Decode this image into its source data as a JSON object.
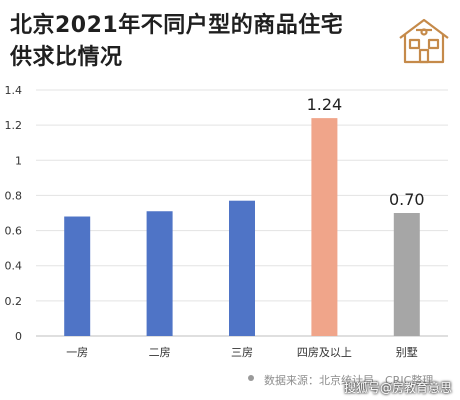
{
  "header": {
    "title_line1": "北京2021年不同户型的商品住宅",
    "title_line2": "供求比情况"
  },
  "logo": {
    "icon": "house-icon",
    "color": "#c58a4a"
  },
  "footer": {
    "source": "数据来源：北京统计局，CRIC整理",
    "watermark": "搜狐号@房教育意思"
  },
  "chart_data": {
    "type": "bar",
    "categories": [
      "一房",
      "二房",
      "三房",
      "四房及以上",
      "别墅"
    ],
    "values": [
      0.68,
      0.71,
      0.77,
      1.24,
      0.7
    ],
    "data_labels": [
      {
        "category": "四房及以上",
        "text": "1.24"
      },
      {
        "category": "别墅",
        "text": "0.70"
      }
    ],
    "bar_colors": [
      "#4f74c6",
      "#4f74c6",
      "#4f74c6",
      "#f0a58a",
      "#a6a6a6"
    ],
    "ylim": [
      0,
      1.4
    ],
    "yticks": [
      "0",
      "0.2",
      "0.4",
      "0.6",
      "0.8",
      "1",
      "1.2",
      "1.4"
    ],
    "grid": true
  }
}
